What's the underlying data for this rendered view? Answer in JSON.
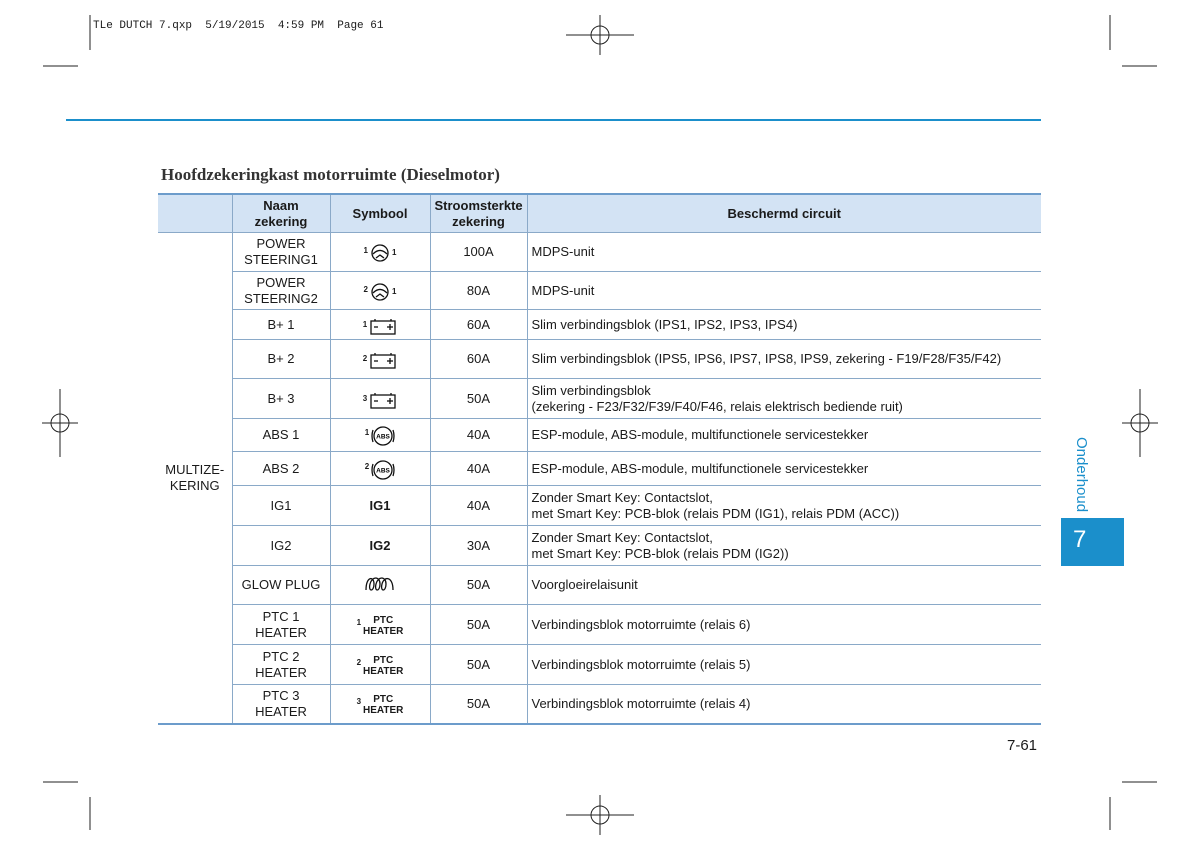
{
  "header": {
    "slug": "TLe DUTCH 7.qxp  5/19/2015  4:59 PM  Page 61"
  },
  "title": "Hoofdzekeringkast motorruimte (Dieselmotor)",
  "table": {
    "columns": [
      "Naam zekering",
      "Symbool",
      "Stroomsterkte\nzekering",
      "Beschermd circuit"
    ],
    "group": "MULTIZE-\nKERING",
    "rows": [
      {
        "name": "POWER\nSTEERING1",
        "symbol": {
          "sup": "1",
          "icon": "steering",
          "sub": "1"
        },
        "amps": "100A",
        "circuit": "MDPS-unit"
      },
      {
        "name": "POWER\nSTEERING2",
        "symbol": {
          "sup": "2",
          "icon": "steering",
          "sub": "1"
        },
        "amps": "80A",
        "circuit": "MDPS-unit"
      },
      {
        "name": "B+ 1",
        "symbol": {
          "sup": "1",
          "icon": "battery"
        },
        "amps": "60A",
        "circuit": "Slim verbindingsblok (IPS1, IPS2, IPS3, IPS4)"
      },
      {
        "name": "B+ 2",
        "symbol": {
          "sup": "2",
          "icon": "battery"
        },
        "amps": "60A",
        "circuit": "Slim verbindingsblok (IPS5, IPS6, IPS7, IPS8, IPS9, zekering - F19/F28/F35/F42)"
      },
      {
        "name": "B+ 3",
        "symbol": {
          "sup": "3",
          "icon": "battery"
        },
        "amps": "50A",
        "circuit": "Slim verbindingsblok\n(zekering - F23/F32/F39/F40/F46, relais elektrisch bediende ruit)"
      },
      {
        "name": "ABS 1",
        "symbol": {
          "sup": "1",
          "icon": "abs",
          "text": "ABS"
        },
        "amps": "40A",
        "circuit": "ESP-module, ABS-module, multifunctionele servicestekker"
      },
      {
        "name": "ABS 2",
        "symbol": {
          "sup": "2",
          "icon": "abs",
          "text": "ABS"
        },
        "amps": "40A",
        "circuit": "ESP-module, ABS-module, multifunctionele servicestekker"
      },
      {
        "name": "IG1",
        "symbol": {
          "text": "IG1"
        },
        "amps": "40A",
        "circuit": "Zonder Smart Key: Contactslot,\nmet Smart Key: PCB-blok (relais PDM (IG1), relais PDM (ACC))"
      },
      {
        "name": "IG2",
        "symbol": {
          "text": "IG2"
        },
        "amps": "30A",
        "circuit": "Zonder Smart Key: Contactslot,\nmet Smart Key: PCB-blok (relais PDM (IG2))"
      },
      {
        "name": "GLOW PLUG",
        "symbol": {
          "icon": "coil"
        },
        "amps": "50A",
        "circuit": "Voorgloeirelaisunit"
      },
      {
        "name": "PTC 1\nHEATER",
        "symbol": {
          "sup": "1",
          "text": "PTC\nHEATER"
        },
        "amps": "50A",
        "circuit": "Verbindingsblok motorruimte (relais 6)"
      },
      {
        "name": "PTC 2\nHEATER",
        "symbol": {
          "sup": "2",
          "text": "PTC\nHEATER"
        },
        "amps": "50A",
        "circuit": "Verbindingsblok motorruimte (relais 5)"
      },
      {
        "name": "PTC 3\nHEATER",
        "symbol": {
          "sup": "3",
          "text": "PTC\nHEATER"
        },
        "amps": "50A",
        "circuit": "Verbindingsblok motorruimte (relais 4)"
      }
    ]
  },
  "side_tab": {
    "label": "Onderhoud",
    "chapter": "7"
  },
  "page_number": "7-61"
}
